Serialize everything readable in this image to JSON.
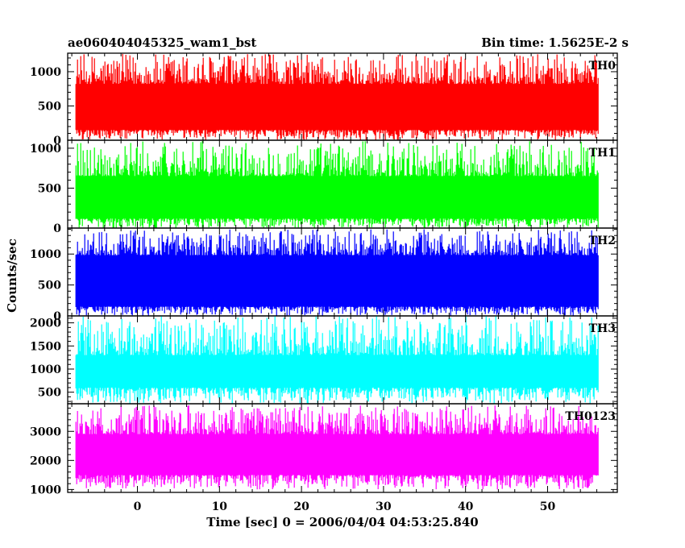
{
  "header": {
    "title_left": "ae060404045325_wam1_bst",
    "title_right": "Bin time: 1.5625E-2 s"
  },
  "chart_data": {
    "type": "line",
    "xlabel": "Time [sec] 0 = 2006/04/04 04:53:25.840",
    "ylabel": "Counts/sec",
    "xlim": [
      -8.5,
      58.5
    ],
    "data_x_range": [
      -7.5,
      56.2
    ],
    "x_ticks": [
      0,
      10,
      20,
      30,
      40,
      50
    ],
    "x_tick_labels": [
      "0",
      "10",
      "20",
      "30",
      "40",
      "50"
    ],
    "panels": [
      {
        "label": "TH0",
        "color": "#ff0000",
        "ylim": [
          0,
          1270
        ],
        "y_ticks": [
          0,
          500,
          1000
        ],
        "y_tick_labels": [
          "0",
          "500",
          "1000"
        ],
        "band_low": 150,
        "band_high": 820,
        "min_value": 0,
        "max_value": 1260
      },
      {
        "label": "TH1",
        "color": "#00ff00",
        "ylim": [
          0,
          1100
        ],
        "y_ticks": [
          0,
          500,
          1000
        ],
        "y_tick_labels": [
          "0",
          "500",
          "1000"
        ],
        "band_low": 120,
        "band_high": 650,
        "min_value": 0,
        "max_value": 1090
      },
      {
        "label": "TH2",
        "color": "#0000ff",
        "ylim": [
          0,
          1420
        ],
        "y_ticks": [
          0,
          500,
          1000
        ],
        "y_tick_labels": [
          "0",
          "500",
          "1000"
        ],
        "band_low": 150,
        "band_high": 980,
        "min_value": 0,
        "max_value": 1400
      },
      {
        "label": "TH3",
        "color": "#00ffff",
        "ylim": [
          250,
          2150
        ],
        "y_ticks": [
          500,
          1000,
          1500,
          2000
        ],
        "y_tick_labels": [
          "500",
          "1000",
          "1500",
          "2000"
        ],
        "band_low": 600,
        "band_high": 1300,
        "min_value": 250,
        "max_value": 2150
      },
      {
        "label": "TH0123",
        "color": "#ff00ff",
        "ylim": [
          900,
          3950
        ],
        "y_ticks": [
          1000,
          2000,
          3000
        ],
        "y_tick_labels": [
          "1000",
          "2000",
          "3000"
        ],
        "band_low": 1500,
        "band_high": 2900,
        "min_value": 1000,
        "max_value": 3900
      }
    ]
  }
}
